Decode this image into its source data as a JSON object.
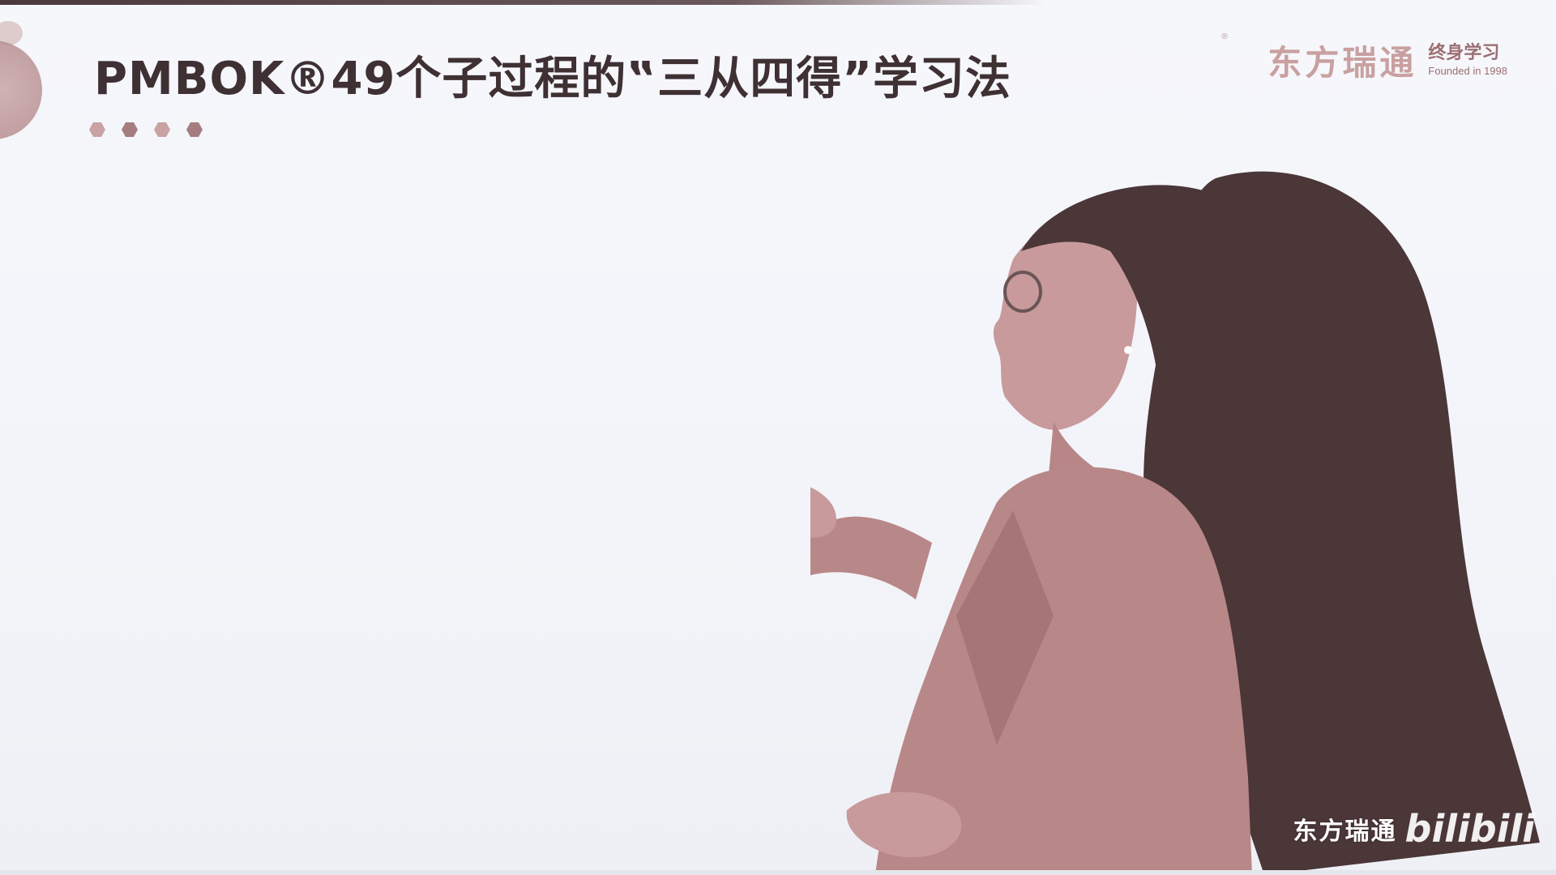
{
  "slide": {
    "title": "PMBOK®49个子过程的‟三从四得”学习法",
    "hex_colors": [
      "#c9a2a4",
      "#a57d80",
      "#c9a2a4",
      "#a57d80"
    ]
  },
  "brand": {
    "name": "东方瑞通",
    "tag": "终身学习",
    "founded": "Founded in 1998",
    "reg": "®"
  },
  "watermark": {
    "text": "东方瑞通",
    "logo": "bilibili"
  },
  "colors": {
    "title": "#3e3033",
    "accent": "#b89092",
    "brand": "#c9a0a0"
  }
}
